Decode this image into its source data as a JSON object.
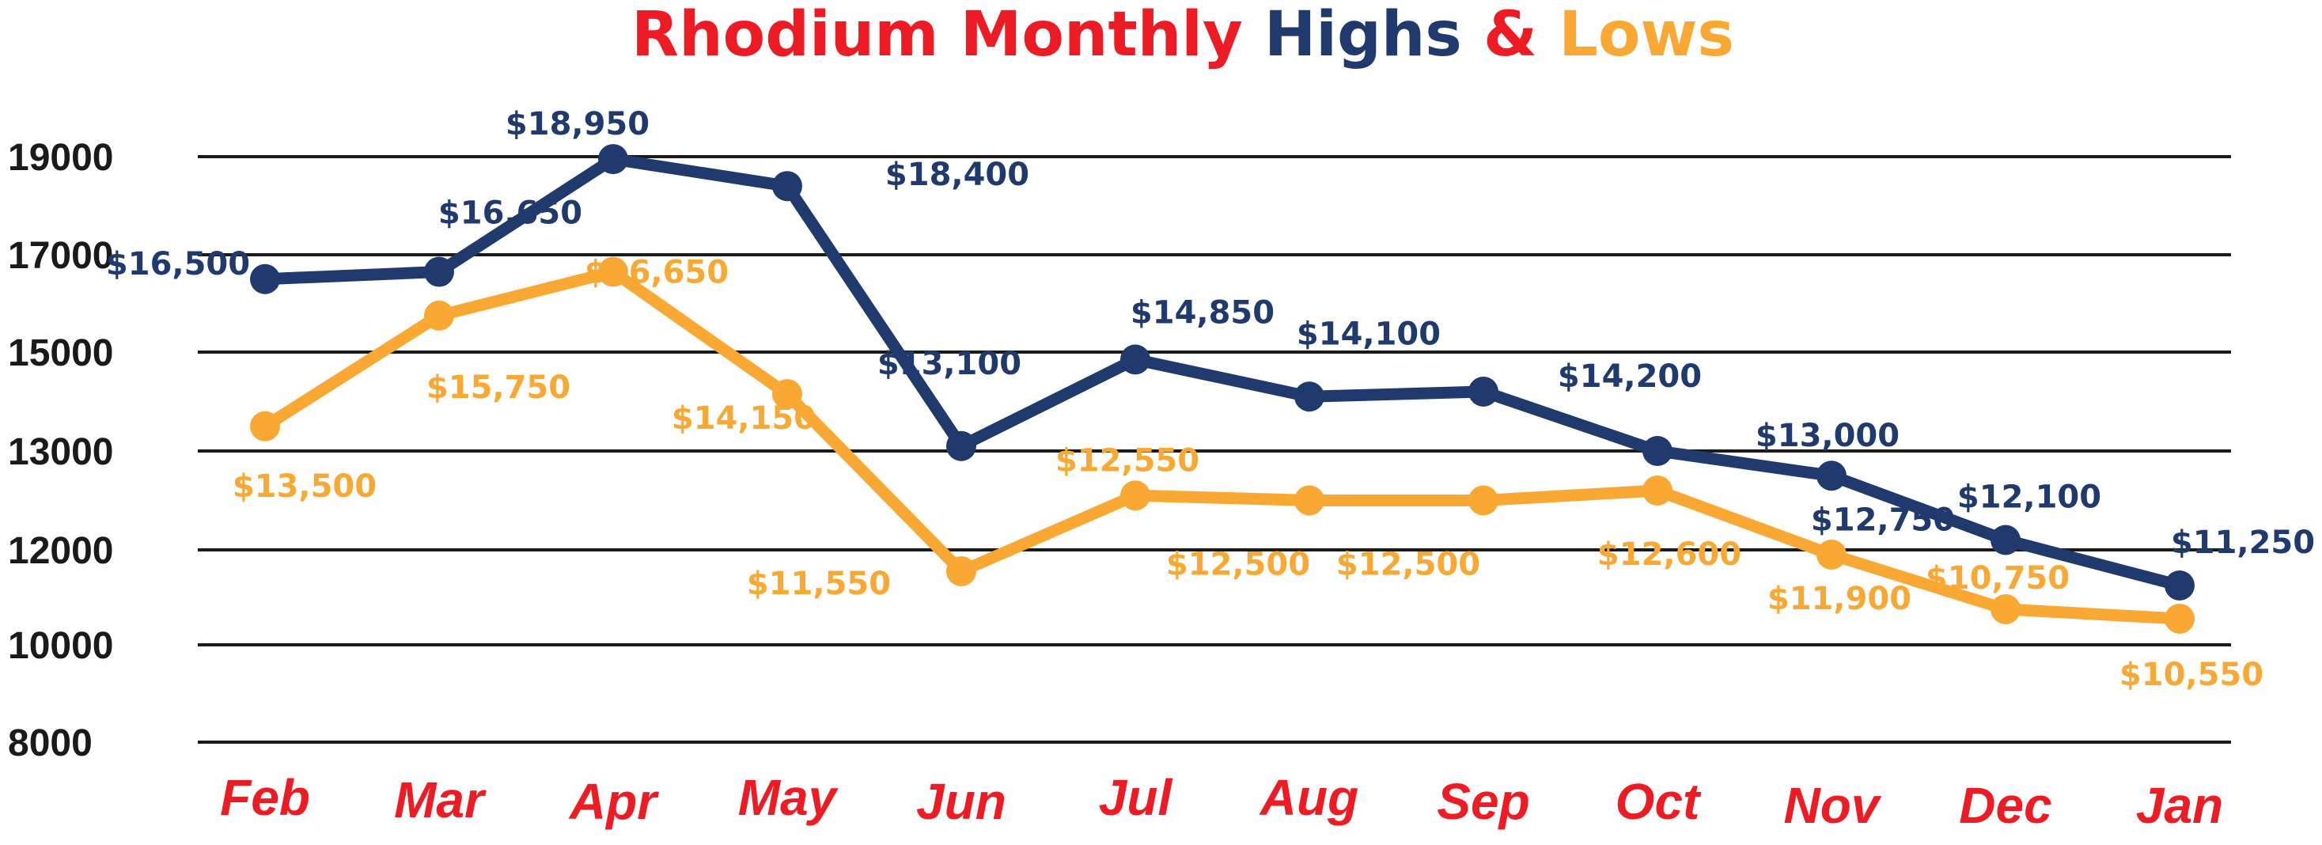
{
  "chart_data": {
    "type": "line",
    "title_parts": [
      {
        "text": "Rhodium Monthly ",
        "color": "#ED1C24"
      },
      {
        "text": "Highs ",
        "color": "#213A6E"
      },
      {
        "text": "& ",
        "color": "#ED1C24"
      },
      {
        "text": "Lows",
        "color": "#F9A833"
      }
    ],
    "categories": [
      "Feb",
      "Mar",
      "Apr",
      "May",
      "Jun",
      "Jul",
      "Aug",
      "Sep",
      "Oct",
      "Nov",
      "Dec",
      "Jan"
    ],
    "y_ticks": [
      "8000",
      "10000",
      "12000",
      "13000",
      "15000",
      "17000",
      "19000"
    ],
    "y_tick_values": [
      8000,
      10000,
      12000,
      13000,
      15000,
      17000,
      19000
    ],
    "grid": true,
    "series": [
      {
        "key": "highs",
        "color": "#213A6E",
        "values": [
          16500,
          16650,
          18950,
          18400,
          13100,
          14850,
          14100,
          14200,
          13000,
          12750,
          12100,
          11250
        ],
        "labels": [
          "$16,500",
          "$16,650",
          "$18,950",
          "$18,400",
          "$13,100",
          "$14,850",
          "$14,100",
          "$14,200",
          "$13,000",
          "$12,750",
          "$12,100",
          "$11,250"
        ]
      },
      {
        "key": "lows",
        "color": "#F9A833",
        "values": [
          13500,
          15750,
          16650,
          14150,
          11550,
          12550,
          12500,
          12500,
          12600,
          11900,
          10750,
          10550
        ],
        "labels": [
          "$13,500",
          "$15,750",
          "$16,650",
          "$14,150",
          "$11,550",
          "$12,550",
          "$12,500",
          "$12,500",
          "$12,600",
          "$11,900",
          "$10,750",
          "$10,550"
        ]
      }
    ],
    "colors": {
      "month_label": "#ED1C24",
      "grid": "#1a1a1a",
      "tick_text": "#1a1a1a"
    }
  }
}
